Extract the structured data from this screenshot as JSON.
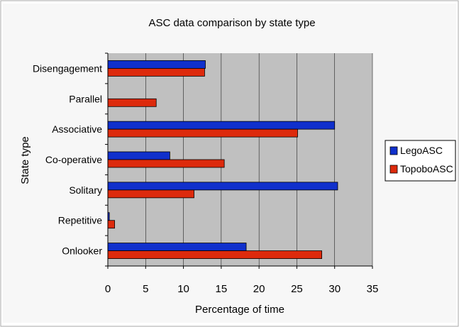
{
  "chart_data": {
    "type": "bar",
    "orientation": "horizontal",
    "title": "ASC data comparison by state type",
    "xlabel": "Percentage of time",
    "ylabel": "State type",
    "categories": [
      "Disengagement",
      "Parallel",
      "Associative",
      "Co-operative",
      "Solitary",
      "Repetitive",
      "Onlooker"
    ],
    "series": [
      {
        "name": "LegoASC",
        "color": "#1030cc",
        "values": [
          12.9,
          0,
          30.0,
          8.2,
          30.4,
          0.2,
          18.3
        ]
      },
      {
        "name": "TopoboASC",
        "color": "#dd2a0c",
        "values": [
          12.8,
          6.4,
          25.1,
          15.4,
          11.4,
          0.9,
          28.3
        ]
      }
    ],
    "xlim": [
      0,
      35
    ],
    "xticks": [
      0,
      5,
      10,
      15,
      20,
      25,
      30,
      35
    ],
    "grid": true,
    "legend": "right",
    "plot_background": "#c0c0c0"
  }
}
